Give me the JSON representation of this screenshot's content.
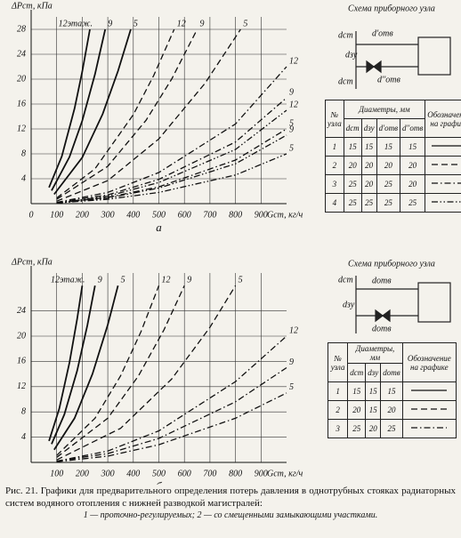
{
  "chart_data": [
    {
      "type": "line",
      "subtitle": "а",
      "y_label": "ΔPст, кПа",
      "x_label": "Gст, кг/ч",
      "xlim": [
        0,
        1000
      ],
      "ylim": [
        0,
        30
      ],
      "xticks": [
        0,
        100,
        200,
        300,
        400,
        500,
        600,
        700,
        800,
        900
      ],
      "yticks": [
        4,
        8,
        12,
        16,
        20,
        24,
        28
      ],
      "grid": true,
      "series": [
        {
          "name": "12этаж.",
          "color": "#111111",
          "dash": "solid",
          "x": [
            70,
            120,
            170,
            200,
            230
          ],
          "values": [
            2.6,
            7.6,
            15.3,
            21.2,
            28
          ]
        },
        {
          "name": "9",
          "color": "#111111",
          "dash": "solid",
          "x": [
            80,
            150,
            200,
            250,
            290
          ],
          "values": [
            2.1,
            7.5,
            13.3,
            20.8,
            28
          ]
        },
        {
          "name": "5",
          "color": "#111111",
          "dash": "solid",
          "x": [
            90,
            200,
            280,
            340,
            390
          ],
          "values": [
            1.5,
            7.4,
            14.4,
            21.3,
            28
          ]
        },
        {
          "name": "12",
          "color": "#111111",
          "dash": "dashed",
          "x": [
            100,
            250,
            400,
            480,
            560
          ],
          "values": [
            0.9,
            5.6,
            14.3,
            20.6,
            28
          ]
        },
        {
          "name": "9",
          "color": "#111111",
          "dash": "dashed",
          "x": [
            100,
            300,
            450,
            550,
            650
          ],
          "values": [
            0.7,
            6.0,
            13.4,
            20.0,
            28
          ]
        },
        {
          "name": "5",
          "color": "#111111",
          "dash": "dashed",
          "x": [
            100,
            300,
            500,
            680,
            820
          ],
          "values": [
            0.4,
            3.7,
            10.4,
            19.3,
            28
          ]
        },
        {
          "name": "12",
          "color": "#111111",
          "dash": "dashdot",
          "x": [
            100,
            300,
            500,
            800,
            1000
          ],
          "values": [
            0.2,
            1.8,
            5.0,
            12.8,
            22
          ]
        },
        {
          "name": "9",
          "color": "#111111",
          "dash": "dashdot",
          "x": [
            100,
            300,
            500,
            800,
            1000
          ],
          "values": [
            0.2,
            1.4,
            3.9,
            9.9,
            17
          ]
        },
        {
          "name": "5",
          "color": "#111111",
          "dash": "dashdot",
          "x": [
            100,
            300,
            500,
            800,
            1000
          ],
          "values": [
            0.1,
            1.0,
            2.7,
            7.0,
            12
          ]
        },
        {
          "name": "12",
          "color": "#111111",
          "dash": "dashdotdot",
          "x": [
            100,
            300,
            500,
            800,
            1000
          ],
          "values": [
            0.1,
            1.2,
            3.4,
            8.7,
            15
          ]
        },
        {
          "name": "9",
          "color": "#111111",
          "dash": "dashdotdot",
          "x": [
            100,
            300,
            500,
            800,
            1000
          ],
          "values": [
            0.1,
            0.9,
            2.5,
            6.4,
            11
          ]
        },
        {
          "name": "5",
          "color": "#111111",
          "dash": "dashdotdot",
          "x": [
            100,
            300,
            500,
            800,
            1000
          ],
          "values": [
            0.1,
            0.7,
            1.8,
            4.6,
            8
          ]
        }
      ]
    },
    {
      "type": "line",
      "subtitle": "б",
      "y_label": "ΔPст, кПа",
      "x_label": "Gст, кг/ч",
      "xlim": [
        0,
        1000
      ],
      "ylim": [
        0,
        30
      ],
      "xticks": [
        100,
        200,
        300,
        400,
        500,
        600,
        700,
        800,
        900
      ],
      "yticks": [
        4,
        8,
        12,
        16,
        20,
        24
      ],
      "grid": true,
      "series": [
        {
          "name": "12этаж.",
          "color": "#111111",
          "dash": "solid",
          "x": [
            70,
            110,
            150,
            180,
            200
          ],
          "values": [
            3.4,
            8.5,
            15.8,
            22.7,
            28
          ]
        },
        {
          "name": "9",
          "color": "#111111",
          "dash": "solid",
          "x": [
            80,
            130,
            180,
            220,
            250
          ],
          "values": [
            2.9,
            7.6,
            14.5,
            21.7,
            28
          ]
        },
        {
          "name": "5",
          "color": "#111111",
          "dash": "solid",
          "x": [
            90,
            170,
            240,
            300,
            340
          ],
          "values": [
            2.0,
            7.0,
            14.0,
            21.8,
            28
          ]
        },
        {
          "name": "12",
          "color": "#111111",
          "dash": "dashed",
          "x": [
            100,
            250,
            350,
            430,
            500
          ],
          "values": [
            1.1,
            7.0,
            13.7,
            20.7,
            28
          ]
        },
        {
          "name": "9",
          "color": "#111111",
          "dash": "dashed",
          "x": [
            100,
            300,
            420,
            520,
            600
          ],
          "values": [
            0.8,
            7.0,
            13.7,
            21.0,
            28
          ]
        },
        {
          "name": "5",
          "color": "#111111",
          "dash": "dashed",
          "x": [
            100,
            350,
            550,
            700,
            800
          ],
          "values": [
            0.4,
            5.4,
            13.2,
            21.4,
            28
          ]
        },
        {
          "name": "12",
          "color": "#111111",
          "dash": "dashdot",
          "x": [
            100,
            300,
            500,
            800,
            1000
          ],
          "values": [
            0.2,
            1.8,
            5.0,
            12.8,
            20
          ]
        },
        {
          "name": "9",
          "color": "#111111",
          "dash": "dashdot",
          "x": [
            100,
            300,
            500,
            800,
            1000
          ],
          "values": [
            0.2,
            1.4,
            3.8,
            9.6,
            15
          ]
        },
        {
          "name": "5",
          "color": "#111111",
          "dash": "dashdot",
          "x": [
            100,
            300,
            500,
            800,
            1000
          ],
          "values": [
            0.1,
            1.0,
            2.8,
            7.0,
            11
          ]
        }
      ]
    }
  ],
  "schemes": [
    {
      "title": "Схема приборного узла",
      "labels": [
        "dст",
        "d'отв",
        "dзу",
        "d''отв",
        "dст"
      ]
    },
    {
      "title": "Схема приборного узла",
      "labels": [
        "dст",
        "dотв",
        "dзу",
        "dотв"
      ]
    }
  ],
  "tables": [
    {
      "header": {
        "number": "№ узла",
        "diameters": "Диаметры, мм",
        "columns": [
          "dст",
          "dзу",
          "d'отв",
          "d''отв"
        ],
        "legend": "Обозначение на графике"
      },
      "rows": [
        {
          "cells": [
            1,
            15,
            15,
            15,
            15
          ],
          "dash": "solid"
        },
        {
          "cells": [
            2,
            20,
            20,
            20,
            20
          ],
          "dash": "dashed"
        },
        {
          "cells": [
            3,
            25,
            20,
            25,
            20
          ],
          "dash": "dashdot"
        },
        {
          "cells": [
            4,
            25,
            25,
            25,
            25
          ],
          "dash": "dashdotdot"
        }
      ]
    },
    {
      "header": {
        "number": "№ узла",
        "diameters": "Диаметры, мм",
        "columns": [
          "dст",
          "dзу",
          "dотв"
        ],
        "legend": "Обозначение на графике"
      },
      "rows": [
        {
          "cells": [
            1,
            15,
            15,
            15
          ],
          "dash": "solid"
        },
        {
          "cells": [
            2,
            20,
            15,
            20
          ],
          "dash": "dashed"
        },
        {
          "cells": [
            3,
            25,
            20,
            25
          ],
          "dash": "dashdot"
        }
      ]
    }
  ],
  "caption": {
    "text": "Рис. 21. Графики для предварительного определения потерь давления в однотрубных стояках радиаторных систем водяного отопления с нижней разводкой магистралей:",
    "note": "1 — проточно-регулируемых; 2 — со смещенными замыкающими участками."
  }
}
